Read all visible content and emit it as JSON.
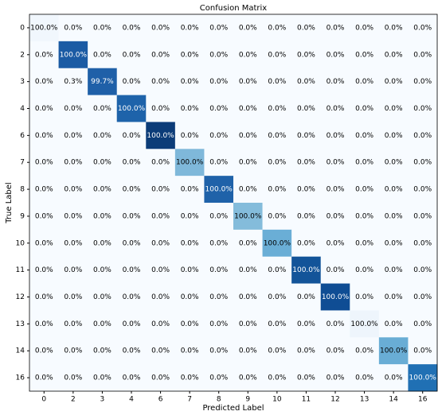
{
  "chart_data": {
    "type": "heatmap",
    "title": "Confusion Matrix",
    "x_label": "Predicted Label",
    "y_label": "True Label",
    "categories": [
      "0",
      "2",
      "3",
      "4",
      "6",
      "7",
      "8",
      "9",
      "10",
      "11",
      "12",
      "13",
      "14",
      "16"
    ],
    "values": [
      [
        100,
        0,
        0,
        0,
        0,
        0,
        0,
        0,
        0,
        0,
        0,
        0,
        0,
        0
      ],
      [
        0,
        100,
        0,
        0,
        0,
        0,
        0,
        0,
        0,
        0,
        0,
        0,
        0,
        0
      ],
      [
        0,
        0.3,
        99.7,
        0,
        0,
        0,
        0,
        0,
        0,
        0,
        0,
        0,
        0,
        0
      ],
      [
        0,
        0,
        0,
        100,
        0,
        0,
        0,
        0,
        0,
        0,
        0,
        0,
        0,
        0
      ],
      [
        0,
        0,
        0,
        0,
        100,
        0,
        0,
        0,
        0,
        0,
        0,
        0,
        0,
        0
      ],
      [
        0,
        0,
        0,
        0,
        0,
        100,
        0,
        0,
        0,
        0,
        0,
        0,
        0,
        0
      ],
      [
        0,
        0,
        0,
        0,
        0,
        0,
        100,
        0,
        0,
        0,
        0,
        0,
        0,
        0
      ],
      [
        0,
        0,
        0,
        0,
        0,
        0,
        0,
        100,
        0,
        0,
        0,
        0,
        0,
        0
      ],
      [
        0,
        0,
        0,
        0,
        0,
        0,
        0,
        0,
        100,
        0,
        0,
        0,
        0,
        0
      ],
      [
        0,
        0,
        0,
        0,
        0,
        0,
        0,
        0,
        0,
        100,
        0,
        0,
        0,
        0
      ],
      [
        0,
        0,
        0,
        0,
        0,
        0,
        0,
        0,
        0,
        0,
        100,
        0,
        0,
        0
      ],
      [
        0,
        0,
        0,
        0,
        0,
        0,
        0,
        0,
        0,
        0,
        0,
        100,
        0,
        0
      ],
      [
        0,
        0,
        0,
        0,
        0,
        0,
        0,
        0,
        0,
        0,
        0,
        0,
        100,
        0
      ],
      [
        0,
        0,
        0,
        0,
        0,
        0,
        0,
        0,
        0,
        0,
        0,
        0,
        0,
        100
      ]
    ],
    "value_labels": [
      [
        "100.0%",
        "0.0%",
        "0.0%",
        "0.0%",
        "0.0%",
        "0.0%",
        "0.0%",
        "0.0%",
        "0.0%",
        "0.0%",
        "0.0%",
        "0.0%",
        "0.0%",
        "0.0%"
      ],
      [
        "0.0%",
        "100.0%",
        "0.0%",
        "0.0%",
        "0.0%",
        "0.0%",
        "0.0%",
        "0.0%",
        "0.0%",
        "0.0%",
        "0.0%",
        "0.0%",
        "0.0%",
        "0.0%"
      ],
      [
        "0.0%",
        "0.3%",
        "99.7%",
        "0.0%",
        "0.0%",
        "0.0%",
        "0.0%",
        "0.0%",
        "0.0%",
        "0.0%",
        "0.0%",
        "0.0%",
        "0.0%",
        "0.0%"
      ],
      [
        "0.0%",
        "0.0%",
        "0.0%",
        "100.0%",
        "0.0%",
        "0.0%",
        "0.0%",
        "0.0%",
        "0.0%",
        "0.0%",
        "0.0%",
        "0.0%",
        "0.0%",
        "0.0%"
      ],
      [
        "0.0%",
        "0.0%",
        "0.0%",
        "0.0%",
        "100.0%",
        "0.0%",
        "0.0%",
        "0.0%",
        "0.0%",
        "0.0%",
        "0.0%",
        "0.0%",
        "0.0%",
        "0.0%"
      ],
      [
        "0.0%",
        "0.0%",
        "0.0%",
        "0.0%",
        "0.0%",
        "100.0%",
        "0.0%",
        "0.0%",
        "0.0%",
        "0.0%",
        "0.0%",
        "0.0%",
        "0.0%",
        "0.0%"
      ],
      [
        "0.0%",
        "0.0%",
        "0.0%",
        "0.0%",
        "0.0%",
        "0.0%",
        "100.0%",
        "0.0%",
        "0.0%",
        "0.0%",
        "0.0%",
        "0.0%",
        "0.0%",
        "0.0%"
      ],
      [
        "0.0%",
        "0.0%",
        "0.0%",
        "0.0%",
        "0.0%",
        "0.0%",
        "0.0%",
        "100.0%",
        "0.0%",
        "0.0%",
        "0.0%",
        "0.0%",
        "0.0%",
        "0.0%"
      ],
      [
        "0.0%",
        "0.0%",
        "0.0%",
        "0.0%",
        "0.0%",
        "0.0%",
        "0.0%",
        "0.0%",
        "100.0%",
        "0.0%",
        "0.0%",
        "0.0%",
        "0.0%",
        "0.0%"
      ],
      [
        "0.0%",
        "0.0%",
        "0.0%",
        "0.0%",
        "0.0%",
        "0.0%",
        "0.0%",
        "0.0%",
        "0.0%",
        "100.0%",
        "0.0%",
        "0.0%",
        "0.0%",
        "0.0%"
      ],
      [
        "0.0%",
        "0.0%",
        "0.0%",
        "0.0%",
        "0.0%",
        "0.0%",
        "0.0%",
        "0.0%",
        "0.0%",
        "0.0%",
        "100.0%",
        "0.0%",
        "0.0%",
        "0.0%"
      ],
      [
        "0.0%",
        "0.0%",
        "0.0%",
        "0.0%",
        "0.0%",
        "0.0%",
        "0.0%",
        "0.0%",
        "0.0%",
        "0.0%",
        "0.0%",
        "100.0%",
        "0.0%",
        "0.0%"
      ],
      [
        "0.0%",
        "0.0%",
        "0.0%",
        "0.0%",
        "0.0%",
        "0.0%",
        "0.0%",
        "0.0%",
        "0.0%",
        "0.0%",
        "0.0%",
        "0.0%",
        "100.0%",
        "0.0%"
      ],
      [
        "0.0%",
        "0.0%",
        "0.0%",
        "0.0%",
        "0.0%",
        "0.0%",
        "0.0%",
        "0.0%",
        "0.0%",
        "0.0%",
        "0.0%",
        "0.0%",
        "0.0%",
        "100.0%"
      ]
    ],
    "color": "#f7fbff",
    "diagonal_colors": [
      "#f1f7fd",
      "#1b5ba4",
      "#1f60a8",
      "#1e63aa",
      "#0c3c78",
      "#7fb8da",
      "#1f62a9",
      "#84bcdb",
      "#6aaed6",
      "#135499",
      "#0f4d94",
      "#eef5fc",
      "#69add5",
      "#2070b4"
    ]
  }
}
